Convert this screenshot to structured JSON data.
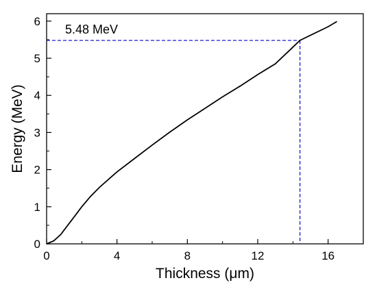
{
  "chart_data": {
    "type": "line",
    "xlabel": "Thickness (μm)",
    "ylabel": "Energy (MeV)",
    "xlim": [
      0,
      18
    ],
    "ylim": [
      0,
      6.2
    ],
    "x_ticks": [
      0,
      4,
      8,
      12,
      16
    ],
    "x_tick_labels": [
      "0",
      "4",
      "8",
      "12",
      "16"
    ],
    "y_ticks": [
      0,
      1,
      2,
      3,
      4,
      5,
      6
    ],
    "y_tick_labels": [
      "0",
      "1",
      "2",
      "3",
      "4",
      "5",
      "6"
    ],
    "grid": false,
    "series": [
      {
        "color": "#000000",
        "x": [
          0,
          0.4,
          0.8,
          1.2,
          1.6,
          2.0,
          2.5,
          3.0,
          4.0,
          5.0,
          6.0,
          7.0,
          8.0,
          9.0,
          10.0,
          11.0,
          12.0,
          13.0,
          14.0,
          14.4,
          15.0,
          16.0,
          16.5
        ],
        "y": [
          0,
          0.08,
          0.25,
          0.5,
          0.75,
          1.0,
          1.28,
          1.52,
          1.94,
          2.3,
          2.66,
          3.01,
          3.34,
          3.65,
          3.96,
          4.25,
          4.56,
          4.85,
          5.3,
          5.48,
          5.62,
          5.85,
          5.99
        ]
      }
    ],
    "reference": {
      "color": "#1a1acc",
      "x": 14.4,
      "y": 5.48,
      "label": "5.48 MeV"
    }
  }
}
